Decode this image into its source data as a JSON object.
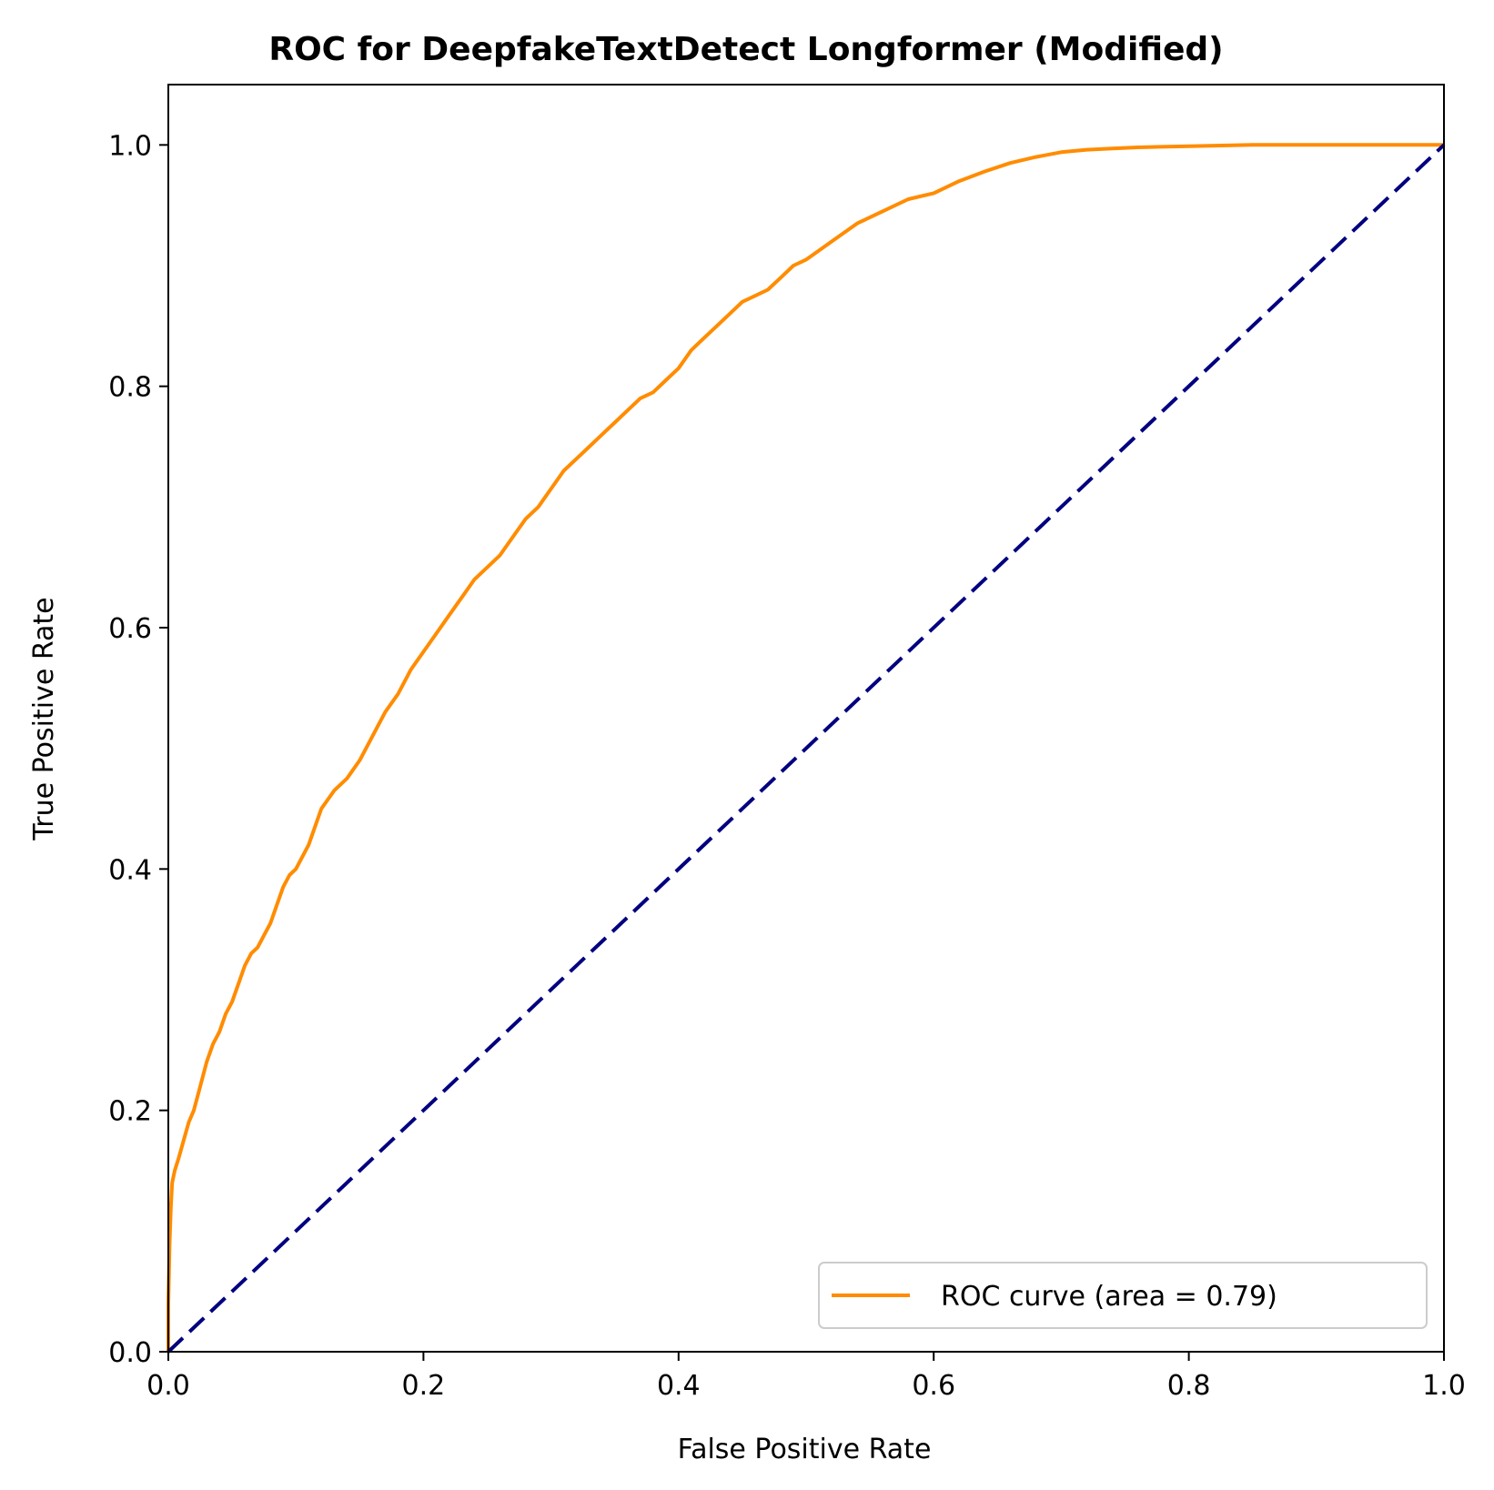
{
  "chart_data": {
    "type": "line",
    "title": "ROC for DeepfakeTextDetect Longformer (Modified)",
    "xlabel": "False Positive Rate",
    "ylabel": "True Positive Rate",
    "xlim": [
      0.0,
      1.0
    ],
    "ylim": [
      0.0,
      1.05
    ],
    "xticks": [
      "0.0",
      "0.2",
      "0.4",
      "0.6",
      "0.8",
      "1.0"
    ],
    "yticks": [
      "0.0",
      "0.2",
      "0.4",
      "0.6",
      "0.8",
      "1.0"
    ],
    "grid": false,
    "legend_position": "lower-right",
    "series": [
      {
        "name": "ROC curve (area = 0.79)",
        "color": "#ff8c00",
        "style": "solid",
        "x": [
          0.0,
          0.0,
          0.001,
          0.002,
          0.003,
          0.005,
          0.008,
          0.012,
          0.016,
          0.02,
          0.025,
          0.03,
          0.035,
          0.04,
          0.045,
          0.05,
          0.055,
          0.06,
          0.065,
          0.07,
          0.075,
          0.08,
          0.085,
          0.09,
          0.095,
          0.1,
          0.105,
          0.11,
          0.115,
          0.12,
          0.13,
          0.14,
          0.15,
          0.16,
          0.17,
          0.18,
          0.19,
          0.2,
          0.21,
          0.22,
          0.23,
          0.24,
          0.25,
          0.26,
          0.27,
          0.28,
          0.29,
          0.3,
          0.31,
          0.32,
          0.33,
          0.34,
          0.35,
          0.36,
          0.37,
          0.38,
          0.39,
          0.4,
          0.41,
          0.42,
          0.43,
          0.44,
          0.45,
          0.46,
          0.47,
          0.48,
          0.49,
          0.5,
          0.52,
          0.54,
          0.56,
          0.58,
          0.6,
          0.62,
          0.64,
          0.66,
          0.68,
          0.7,
          0.72,
          0.74,
          0.76,
          0.8,
          0.85,
          0.9,
          0.95,
          1.0
        ],
        "y": [
          0.0,
          0.04,
          0.09,
          0.12,
          0.14,
          0.15,
          0.16,
          0.175,
          0.19,
          0.2,
          0.22,
          0.24,
          0.255,
          0.265,
          0.28,
          0.29,
          0.305,
          0.32,
          0.33,
          0.335,
          0.345,
          0.355,
          0.37,
          0.385,
          0.395,
          0.4,
          0.41,
          0.42,
          0.435,
          0.45,
          0.465,
          0.475,
          0.49,
          0.51,
          0.53,
          0.545,
          0.565,
          0.58,
          0.595,
          0.61,
          0.625,
          0.64,
          0.65,
          0.66,
          0.675,
          0.69,
          0.7,
          0.715,
          0.73,
          0.74,
          0.75,
          0.76,
          0.77,
          0.78,
          0.79,
          0.795,
          0.805,
          0.815,
          0.83,
          0.84,
          0.85,
          0.86,
          0.87,
          0.875,
          0.88,
          0.89,
          0.9,
          0.905,
          0.92,
          0.935,
          0.945,
          0.955,
          0.96,
          0.97,
          0.978,
          0.985,
          0.99,
          0.994,
          0.996,
          0.997,
          0.998,
          0.999,
          1.0,
          1.0,
          1.0,
          1.0
        ]
      },
      {
        "name": "",
        "color": "#000080",
        "style": "dashed",
        "x": [
          0.0,
          1.0
        ],
        "y": [
          0.0,
          1.0
        ]
      }
    ]
  }
}
